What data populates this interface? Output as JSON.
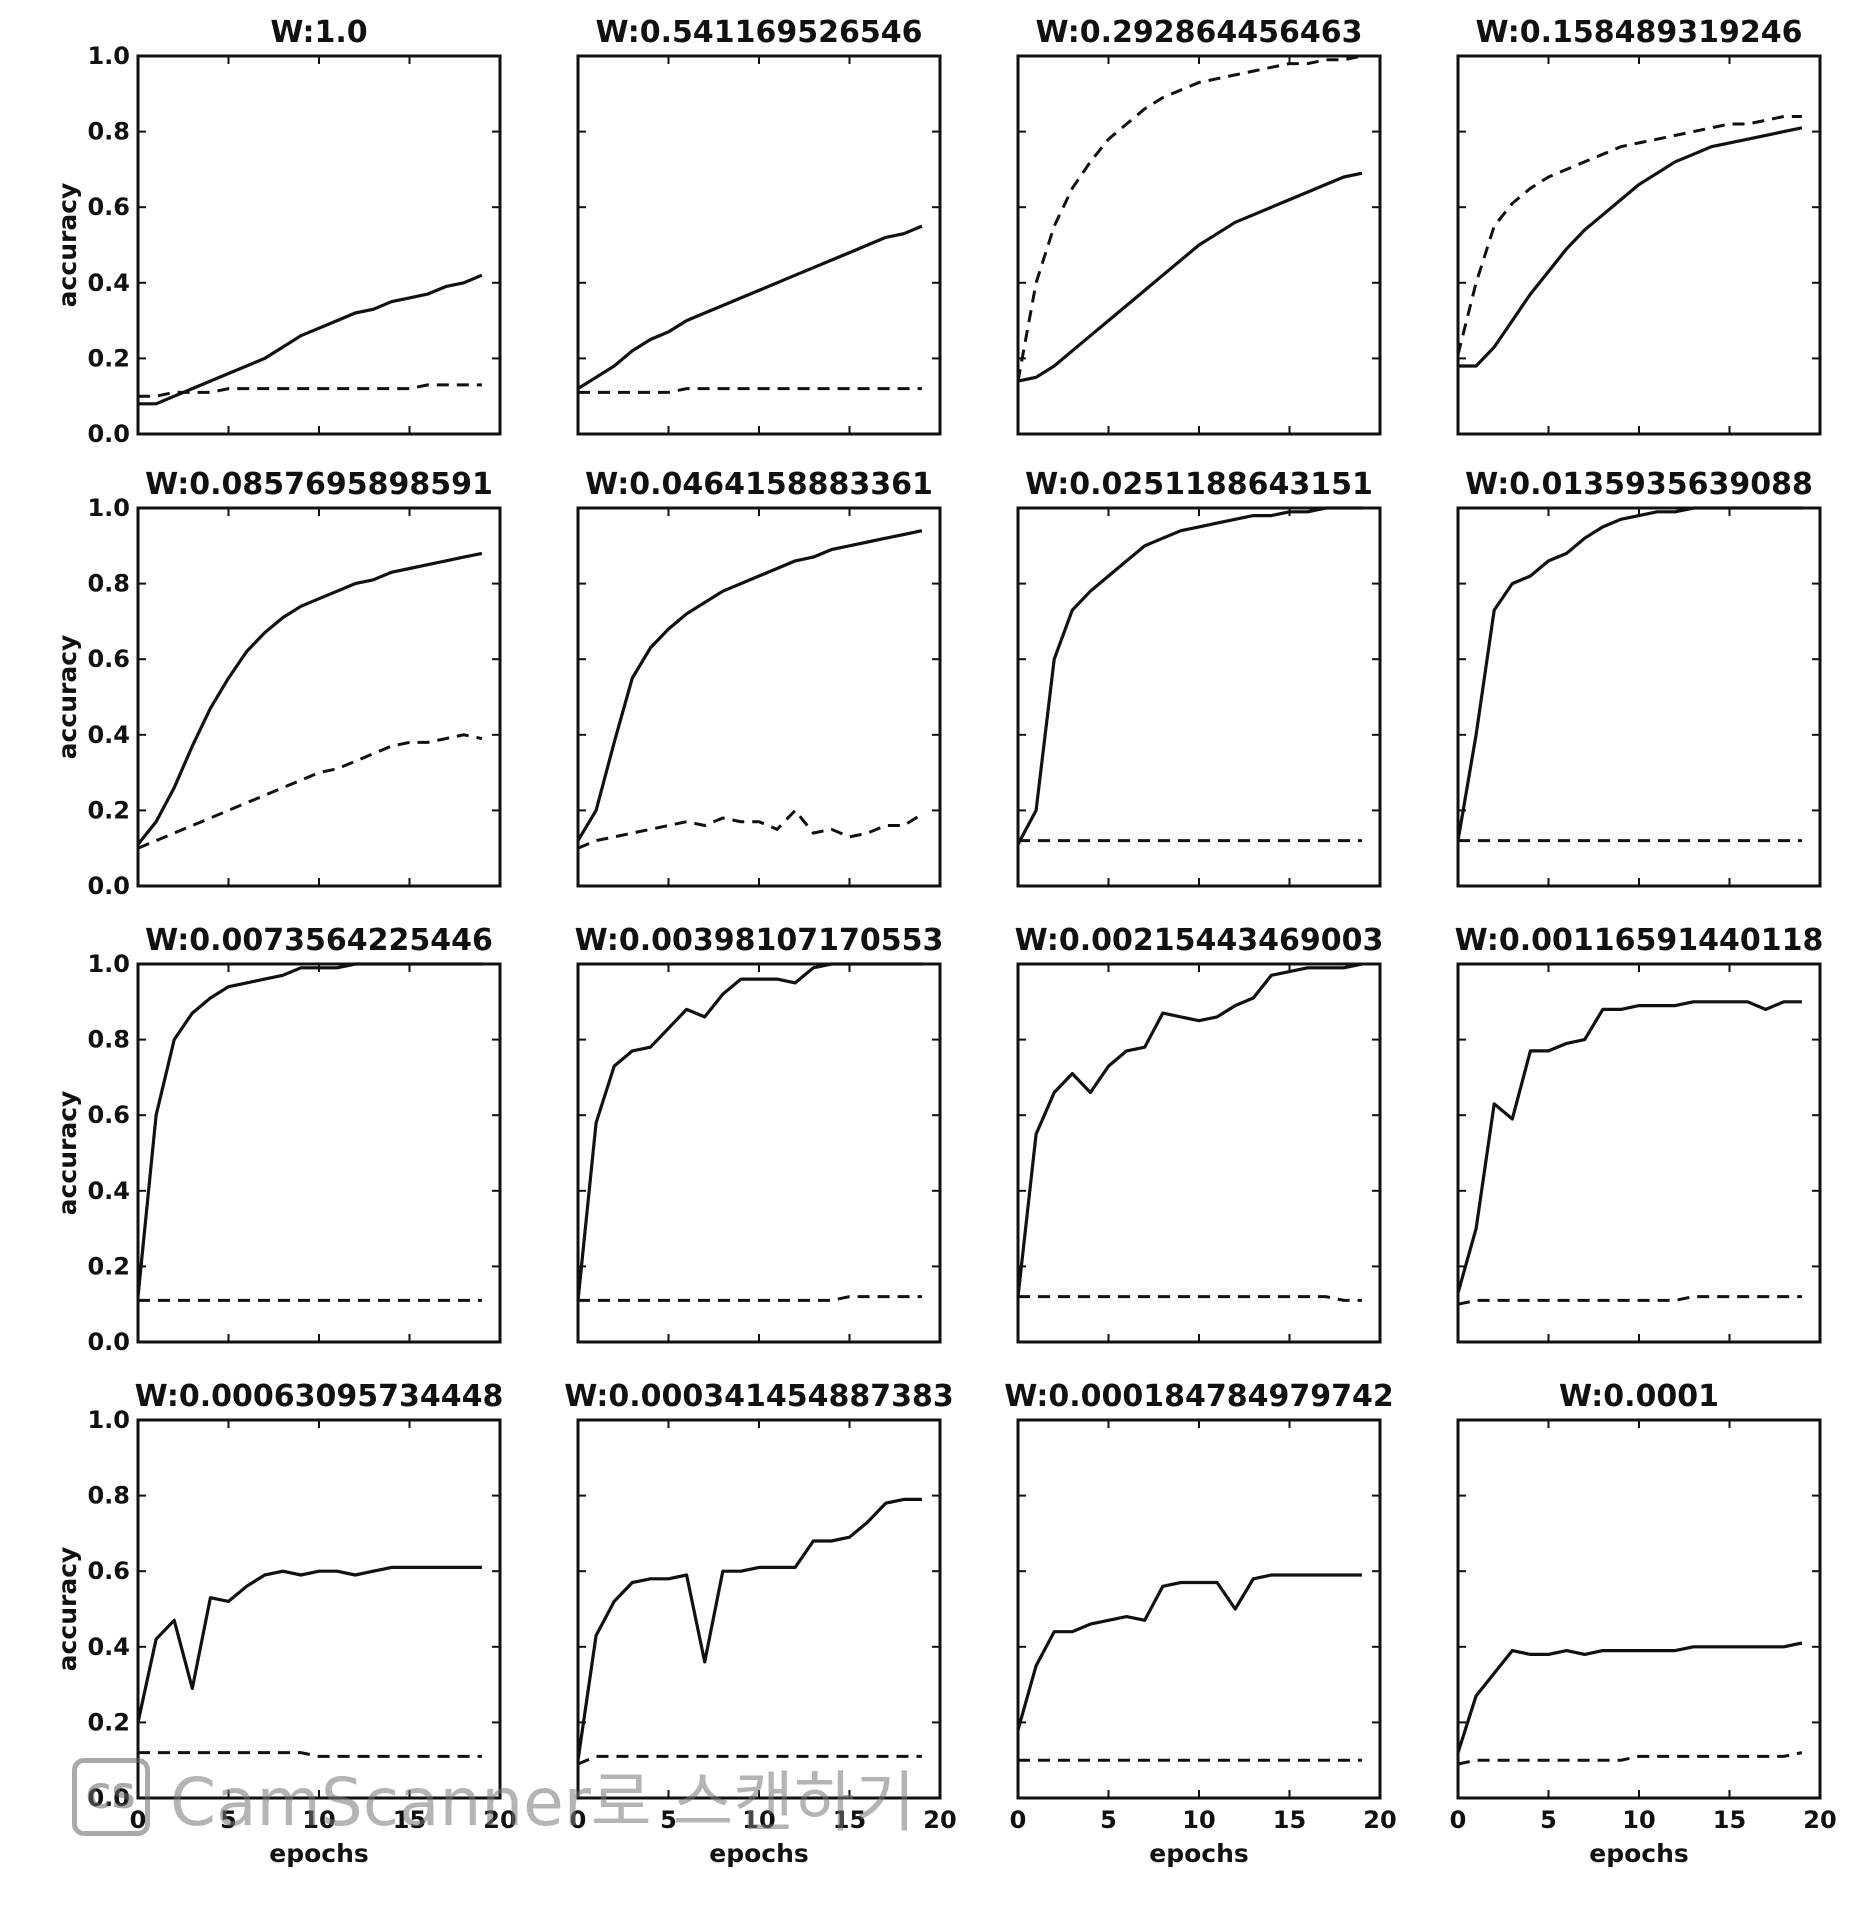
{
  "chart_data": {
    "type": "line",
    "layout": "grid-4x4",
    "x": [
      0,
      1,
      2,
      3,
      4,
      5,
      6,
      7,
      8,
      9,
      10,
      11,
      12,
      13,
      14,
      15,
      16,
      17,
      18,
      19
    ],
    "xlim": [
      0,
      20
    ],
    "ylim": [
      0.0,
      1.0
    ],
    "xticks": [
      "0",
      "5",
      "10",
      "15",
      "20"
    ],
    "yticks": [
      "0.0",
      "0.2",
      "0.4",
      "0.6",
      "0.8",
      "1.0"
    ],
    "xlabel": "epochs",
    "ylabel": "accuracy",
    "series_styles": {
      "train": "solid",
      "test": "dashed"
    },
    "panels": [
      {
        "title": "W:1.0",
        "train": [
          0.08,
          0.08,
          0.1,
          0.12,
          0.14,
          0.16,
          0.18,
          0.2,
          0.23,
          0.26,
          0.28,
          0.3,
          0.32,
          0.33,
          0.35,
          0.36,
          0.37,
          0.39,
          0.4,
          0.42
        ],
        "test": [
          0.1,
          0.1,
          0.11,
          0.11,
          0.11,
          0.12,
          0.12,
          0.12,
          0.12,
          0.12,
          0.12,
          0.12,
          0.12,
          0.12,
          0.12,
          0.12,
          0.13,
          0.13,
          0.13,
          0.13
        ]
      },
      {
        "title": "W:0.541169526546",
        "train": [
          0.12,
          0.15,
          0.18,
          0.22,
          0.25,
          0.27,
          0.3,
          0.32,
          0.34,
          0.36,
          0.38,
          0.4,
          0.42,
          0.44,
          0.46,
          0.48,
          0.5,
          0.52,
          0.53,
          0.55
        ],
        "test": [
          0.11,
          0.11,
          0.11,
          0.11,
          0.11,
          0.11,
          0.12,
          0.12,
          0.12,
          0.12,
          0.12,
          0.12,
          0.12,
          0.12,
          0.12,
          0.12,
          0.12,
          0.12,
          0.12,
          0.12
        ]
      },
      {
        "title": "W:0.292864456463",
        "train": [
          0.14,
          0.15,
          0.18,
          0.22,
          0.26,
          0.3,
          0.34,
          0.38,
          0.42,
          0.46,
          0.5,
          0.53,
          0.56,
          0.58,
          0.6,
          0.62,
          0.64,
          0.66,
          0.68,
          0.69
        ],
        "test": [
          0.14,
          0.4,
          0.55,
          0.65,
          0.72,
          0.78,
          0.82,
          0.86,
          0.89,
          0.91,
          0.93,
          0.94,
          0.95,
          0.96,
          0.97,
          0.98,
          0.98,
          0.99,
          0.99,
          1.0
        ]
      },
      {
        "title": "W:0.158489319246",
        "train": [
          0.18,
          0.18,
          0.23,
          0.3,
          0.37,
          0.43,
          0.49,
          0.54,
          0.58,
          0.62,
          0.66,
          0.69,
          0.72,
          0.74,
          0.76,
          0.77,
          0.78,
          0.79,
          0.8,
          0.81
        ],
        "test": [
          0.21,
          0.4,
          0.55,
          0.61,
          0.65,
          0.68,
          0.7,
          0.72,
          0.74,
          0.76,
          0.77,
          0.78,
          0.79,
          0.8,
          0.81,
          0.82,
          0.82,
          0.83,
          0.84,
          0.84
        ]
      },
      {
        "title": "W:0.0857695898591",
        "train": [
          0.11,
          0.17,
          0.26,
          0.37,
          0.47,
          0.55,
          0.62,
          0.67,
          0.71,
          0.74,
          0.76,
          0.78,
          0.8,
          0.81,
          0.83,
          0.84,
          0.85,
          0.86,
          0.87,
          0.88
        ],
        "test": [
          0.1,
          0.12,
          0.14,
          0.16,
          0.18,
          0.2,
          0.22,
          0.24,
          0.26,
          0.28,
          0.3,
          0.31,
          0.33,
          0.35,
          0.37,
          0.38,
          0.38,
          0.39,
          0.4,
          0.39
        ]
      },
      {
        "title": "W:0.0464158883361",
        "train": [
          0.12,
          0.2,
          0.38,
          0.55,
          0.63,
          0.68,
          0.72,
          0.75,
          0.78,
          0.8,
          0.82,
          0.84,
          0.86,
          0.87,
          0.89,
          0.9,
          0.91,
          0.92,
          0.93,
          0.94
        ],
        "test": [
          0.1,
          0.12,
          0.13,
          0.14,
          0.15,
          0.16,
          0.17,
          0.16,
          0.18,
          0.17,
          0.17,
          0.15,
          0.2,
          0.14,
          0.15,
          0.13,
          0.14,
          0.16,
          0.16,
          0.19
        ]
      },
      {
        "title": "W:0.0251188643151",
        "train": [
          0.11,
          0.2,
          0.6,
          0.73,
          0.78,
          0.82,
          0.86,
          0.9,
          0.92,
          0.94,
          0.95,
          0.96,
          0.97,
          0.98,
          0.98,
          0.99,
          0.99,
          1.0,
          1.0,
          1.0
        ],
        "test": [
          0.12,
          0.12,
          0.12,
          0.12,
          0.12,
          0.12,
          0.12,
          0.12,
          0.12,
          0.12,
          0.12,
          0.12,
          0.12,
          0.12,
          0.12,
          0.12,
          0.12,
          0.12,
          0.12,
          0.12
        ]
      },
      {
        "title": "W:0.0135935639088",
        "train": [
          0.12,
          0.4,
          0.73,
          0.8,
          0.82,
          0.86,
          0.88,
          0.92,
          0.95,
          0.97,
          0.98,
          0.99,
          0.99,
          1.0,
          1.0,
          1.0,
          1.0,
          1.0,
          1.0,
          1.0
        ],
        "test": [
          0.12,
          0.12,
          0.12,
          0.12,
          0.12,
          0.12,
          0.12,
          0.12,
          0.12,
          0.12,
          0.12,
          0.12,
          0.12,
          0.12,
          0.12,
          0.12,
          0.12,
          0.12,
          0.12,
          0.12
        ]
      },
      {
        "title": "W:0.0073564225446",
        "train": [
          0.12,
          0.6,
          0.8,
          0.87,
          0.91,
          0.94,
          0.95,
          0.96,
          0.97,
          0.99,
          0.99,
          0.99,
          1.0,
          1.0,
          1.0,
          1.0,
          1.0,
          1.0,
          1.0,
          1.0
        ],
        "test": [
          0.11,
          0.11,
          0.11,
          0.11,
          0.11,
          0.11,
          0.11,
          0.11,
          0.11,
          0.11,
          0.11,
          0.11,
          0.11,
          0.11,
          0.11,
          0.11,
          0.11,
          0.11,
          0.11,
          0.11
        ]
      },
      {
        "title": "W:0.00398107170553",
        "train": [
          0.11,
          0.58,
          0.73,
          0.77,
          0.78,
          0.83,
          0.88,
          0.86,
          0.92,
          0.96,
          0.96,
          0.96,
          0.95,
          0.99,
          1.0,
          1.0,
          1.0,
          1.0,
          1.0,
          1.0
        ],
        "test": [
          0.11,
          0.11,
          0.11,
          0.11,
          0.11,
          0.11,
          0.11,
          0.11,
          0.11,
          0.11,
          0.11,
          0.11,
          0.11,
          0.11,
          0.11,
          0.12,
          0.12,
          0.12,
          0.12,
          0.12
        ]
      },
      {
        "title": "W:0.00215443469003",
        "train": [
          0.12,
          0.55,
          0.66,
          0.71,
          0.66,
          0.73,
          0.77,
          0.78,
          0.87,
          0.86,
          0.85,
          0.86,
          0.89,
          0.91,
          0.97,
          0.98,
          0.99,
          0.99,
          0.99,
          1.0
        ],
        "test": [
          0.12,
          0.12,
          0.12,
          0.12,
          0.12,
          0.12,
          0.12,
          0.12,
          0.12,
          0.12,
          0.12,
          0.12,
          0.12,
          0.12,
          0.12,
          0.12,
          0.12,
          0.12,
          0.11,
          0.11
        ]
      },
      {
        "title": "W:0.00116591440118",
        "train": [
          0.13,
          0.3,
          0.63,
          0.59,
          0.77,
          0.77,
          0.79,
          0.8,
          0.88,
          0.88,
          0.89,
          0.89,
          0.89,
          0.9,
          0.9,
          0.9,
          0.9,
          0.88,
          0.9,
          0.9
        ],
        "test": [
          0.1,
          0.11,
          0.11,
          0.11,
          0.11,
          0.11,
          0.11,
          0.11,
          0.11,
          0.11,
          0.11,
          0.11,
          0.11,
          0.12,
          0.12,
          0.12,
          0.12,
          0.12,
          0.12,
          0.12
        ]
      },
      {
        "title": "W:0.00063095734448",
        "train": [
          0.2,
          0.42,
          0.47,
          0.29,
          0.53,
          0.52,
          0.56,
          0.59,
          0.6,
          0.59,
          0.6,
          0.6,
          0.59,
          0.6,
          0.61,
          0.61,
          0.61,
          0.61,
          0.61,
          0.61
        ],
        "test": [
          0.12,
          0.12,
          0.12,
          0.12,
          0.12,
          0.12,
          0.12,
          0.12,
          0.12,
          0.12,
          0.11,
          0.11,
          0.11,
          0.11,
          0.11,
          0.11,
          0.11,
          0.11,
          0.11,
          0.11
        ]
      },
      {
        "title": "W:0.000341454887383",
        "train": [
          0.1,
          0.43,
          0.52,
          0.57,
          0.58,
          0.58,
          0.59,
          0.36,
          0.6,
          0.6,
          0.61,
          0.61,
          0.61,
          0.68,
          0.68,
          0.69,
          0.73,
          0.78,
          0.79,
          0.79
        ],
        "test": [
          0.09,
          0.11,
          0.11,
          0.11,
          0.11,
          0.11,
          0.11,
          0.11,
          0.11,
          0.11,
          0.11,
          0.11,
          0.11,
          0.11,
          0.11,
          0.11,
          0.11,
          0.11,
          0.11,
          0.11
        ]
      },
      {
        "title": "W:0.000184784979742",
        "train": [
          0.18,
          0.35,
          0.44,
          0.44,
          0.46,
          0.47,
          0.48,
          0.47,
          0.56,
          0.57,
          0.57,
          0.57,
          0.5,
          0.58,
          0.59,
          0.59,
          0.59,
          0.59,
          0.59,
          0.59
        ],
        "test": [
          0.1,
          0.1,
          0.1,
          0.1,
          0.1,
          0.1,
          0.1,
          0.1,
          0.1,
          0.1,
          0.1,
          0.1,
          0.1,
          0.1,
          0.1,
          0.1,
          0.1,
          0.1,
          0.1,
          0.1
        ]
      },
      {
        "title": "W:0.0001",
        "train": [
          0.12,
          0.27,
          0.33,
          0.39,
          0.38,
          0.38,
          0.39,
          0.38,
          0.39,
          0.39,
          0.39,
          0.39,
          0.39,
          0.4,
          0.4,
          0.4,
          0.4,
          0.4,
          0.4,
          0.41
        ],
        "test": [
          0.09,
          0.1,
          0.1,
          0.1,
          0.1,
          0.1,
          0.1,
          0.1,
          0.1,
          0.1,
          0.11,
          0.11,
          0.11,
          0.11,
          0.11,
          0.11,
          0.11,
          0.11,
          0.11,
          0.12
        ]
      }
    ]
  },
  "watermark": {
    "logo": "CS",
    "text": "CamScanner로 스캔하기"
  }
}
